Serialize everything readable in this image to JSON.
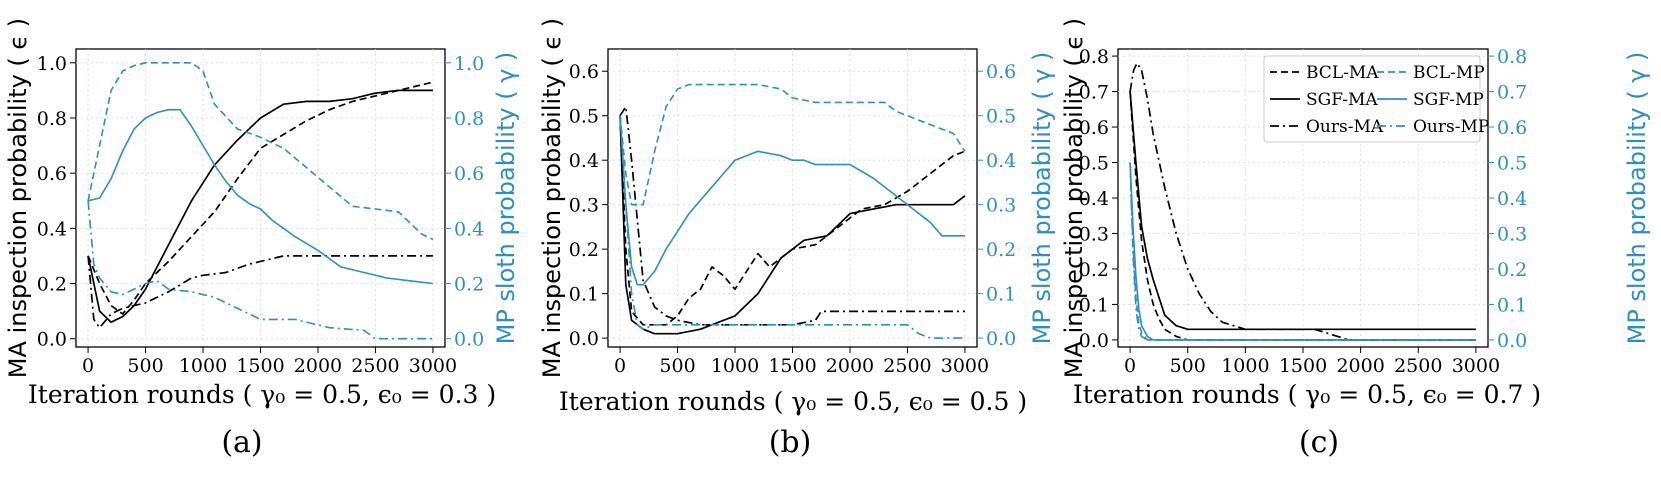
{
  "colors": {
    "ma": "#000000",
    "mp": "#2e8fbf",
    "grid": "#d9d9d9"
  },
  "chart_data": [
    {
      "type": "line",
      "panel": "(a)",
      "xlabel": "Iteration rounds ( γ₀ = 0.5, ϵ₀ = 0.3 )",
      "ylabel_left": "MA inspection probability ( ϵ )",
      "ylabel_right": "MP sloth probability ( γ )",
      "xlim": [
        0,
        3000
      ],
      "ylim_left": [
        -0.03,
        1.05
      ],
      "ylim_right": [
        -0.03,
        1.05
      ],
      "xticks": [
        0,
        500,
        1000,
        1500,
        2000,
        2500,
        3000
      ],
      "yticks_left": [
        0.0,
        0.2,
        0.4,
        0.6,
        0.8,
        1.0
      ],
      "yticks_right": [
        0.0,
        0.2,
        0.4,
        0.6,
        0.8,
        1.0
      ],
      "ytick_labels_left": [
        "0.0",
        "0.2",
        "0.4",
        "0.6",
        "0.8",
        "1.0"
      ],
      "ytick_labels_right": [
        "0.0",
        "0.2",
        "0.4",
        "0.6",
        "0.8",
        "1.0"
      ],
      "series": [
        {
          "name": "BCL-MA",
          "axis": "left",
          "style": "dashed",
          "x": [
            0,
            100,
            200,
            300,
            400,
            500,
            700,
            900,
            1100,
            1300,
            1500,
            1700,
            1900,
            2100,
            2300,
            2500,
            2700,
            2900,
            3000
          ],
          "y": [
            0.3,
            0.2,
            0.12,
            0.09,
            0.14,
            0.2,
            0.28,
            0.37,
            0.46,
            0.58,
            0.69,
            0.74,
            0.79,
            0.83,
            0.86,
            0.88,
            0.9,
            0.92,
            0.93
          ]
        },
        {
          "name": "SGF-MA",
          "axis": "left",
          "style": "solid",
          "x": [
            0,
            100,
            200,
            300,
            400,
            500,
            700,
            900,
            1100,
            1300,
            1500,
            1700,
            1900,
            2100,
            2300,
            2500,
            2700,
            2900,
            3000
          ],
          "y": [
            0.3,
            0.1,
            0.06,
            0.08,
            0.12,
            0.18,
            0.34,
            0.5,
            0.63,
            0.72,
            0.8,
            0.85,
            0.86,
            0.86,
            0.87,
            0.89,
            0.9,
            0.9,
            0.9
          ]
        },
        {
          "name": "Ours-MA",
          "axis": "left",
          "style": "dashdot",
          "x": [
            0,
            50,
            100,
            200,
            300,
            400,
            500,
            700,
            900,
            1000,
            1200,
            1400,
            1600,
            1700,
            2000,
            2500,
            3000
          ],
          "y": [
            0.3,
            0.07,
            0.04,
            0.09,
            0.11,
            0.12,
            0.13,
            0.17,
            0.22,
            0.23,
            0.24,
            0.27,
            0.29,
            0.3,
            0.3,
            0.3,
            0.3
          ]
        },
        {
          "name": "BCL-MP",
          "axis": "right",
          "style": "dashed",
          "x": [
            0,
            100,
            200,
            300,
            400,
            500,
            700,
            900,
            1000,
            1100,
            1300,
            1500,
            1700,
            1900,
            2100,
            2300,
            2500,
            2700,
            2900,
            3000
          ],
          "y": [
            0.5,
            0.7,
            0.9,
            0.97,
            0.99,
            1.0,
            1.0,
            1.0,
            0.97,
            0.85,
            0.76,
            0.73,
            0.69,
            0.62,
            0.55,
            0.48,
            0.47,
            0.46,
            0.38,
            0.36
          ]
        },
        {
          "name": "SGF-MP",
          "axis": "right",
          "style": "solid",
          "x": [
            0,
            100,
            200,
            300,
            400,
            500,
            600,
            700,
            800,
            900,
            1000,
            1100,
            1200,
            1300,
            1400,
            1500,
            1600,
            1800,
            2000,
            2200,
            2400,
            2600,
            2800,
            3000
          ],
          "y": [
            0.5,
            0.51,
            0.58,
            0.68,
            0.76,
            0.8,
            0.82,
            0.83,
            0.83,
            0.77,
            0.7,
            0.63,
            0.57,
            0.52,
            0.49,
            0.47,
            0.43,
            0.37,
            0.32,
            0.26,
            0.24,
            0.22,
            0.21,
            0.2
          ]
        },
        {
          "name": "Ours-MP",
          "axis": "right",
          "style": "dashdot",
          "x": [
            0,
            50,
            100,
            200,
            300,
            400,
            500,
            600,
            700,
            900,
            1100,
            1300,
            1500,
            1800,
            2000,
            2100,
            2400,
            2500,
            3000
          ],
          "y": [
            0.5,
            0.27,
            0.22,
            0.17,
            0.16,
            0.18,
            0.2,
            0.21,
            0.18,
            0.17,
            0.15,
            0.11,
            0.07,
            0.07,
            0.05,
            0.04,
            0.03,
            0.0,
            0.0
          ]
        }
      ]
    },
    {
      "type": "line",
      "panel": "(b)",
      "xlabel": "Iteration rounds ( γ₀ = 0.5, ϵ₀ = 0.5 )",
      "ylabel_left": "MA inspection probability ( ϵ )",
      "ylabel_right": "MP sloth probability ( γ )",
      "xlim": [
        0,
        3000
      ],
      "ylim_left": [
        -0.02,
        0.65
      ],
      "ylim_right": [
        -0.02,
        0.65
      ],
      "xticks": [
        0,
        500,
        1000,
        1500,
        2000,
        2500,
        3000
      ],
      "yticks_left": [
        0.0,
        0.1,
        0.2,
        0.3,
        0.4,
        0.5,
        0.6
      ],
      "yticks_right": [
        0.0,
        0.1,
        0.2,
        0.3,
        0.4,
        0.5,
        0.6
      ],
      "ytick_labels_left": [
        "0.0",
        "0.1",
        "0.2",
        "0.3",
        "0.4",
        "0.5",
        "0.6"
      ],
      "ytick_labels_right": [
        "0.0",
        "0.1",
        "0.2",
        "0.3",
        "0.4",
        "0.5",
        "0.6"
      ],
      "series": [
        {
          "name": "BCL-MA",
          "axis": "left",
          "style": "dashed",
          "x": [
            0,
            50,
            100,
            200,
            300,
            400,
            500,
            600,
            700,
            800,
            900,
            1000,
            1100,
            1200,
            1300,
            1400,
            1500,
            1700,
            1900,
            2100,
            2300,
            2500,
            2700,
            2900,
            3000
          ],
          "y": [
            0.5,
            0.2,
            0.06,
            0.03,
            0.03,
            0.03,
            0.05,
            0.09,
            0.11,
            0.16,
            0.14,
            0.11,
            0.15,
            0.19,
            0.16,
            0.18,
            0.2,
            0.21,
            0.25,
            0.29,
            0.3,
            0.33,
            0.37,
            0.41,
            0.42
          ]
        },
        {
          "name": "SGF-MA",
          "axis": "left",
          "style": "solid",
          "x": [
            0,
            50,
            100,
            200,
            300,
            400,
            500,
            700,
            800,
            900,
            1000,
            1200,
            1400,
            1600,
            1800,
            2000,
            2200,
            2400,
            2600,
            2800,
            2900,
            3000
          ],
          "y": [
            0.5,
            0.12,
            0.04,
            0.02,
            0.01,
            0.01,
            0.01,
            0.02,
            0.03,
            0.04,
            0.05,
            0.1,
            0.18,
            0.22,
            0.23,
            0.28,
            0.29,
            0.3,
            0.3,
            0.3,
            0.3,
            0.32
          ]
        },
        {
          "name": "Ours-MA",
          "axis": "left",
          "style": "dashdot",
          "x": [
            0,
            50,
            100,
            200,
            300,
            400,
            500,
            700,
            900,
            1100,
            1300,
            1500,
            1700,
            1750,
            2000,
            2500,
            3000
          ],
          "y": [
            0.5,
            0.52,
            0.4,
            0.13,
            0.07,
            0.05,
            0.04,
            0.03,
            0.03,
            0.03,
            0.03,
            0.03,
            0.04,
            0.06,
            0.06,
            0.06,
            0.06
          ]
        },
        {
          "name": "BCL-MP",
          "axis": "right",
          "style": "dashed",
          "x": [
            0,
            50,
            100,
            200,
            300,
            400,
            500,
            600,
            700,
            800,
            1000,
            1200,
            1400,
            1500,
            1700,
            2000,
            2300,
            2400,
            2600,
            2800,
            2900,
            3000
          ],
          "y": [
            0.5,
            0.37,
            0.3,
            0.3,
            0.42,
            0.52,
            0.56,
            0.57,
            0.57,
            0.57,
            0.57,
            0.57,
            0.56,
            0.54,
            0.53,
            0.53,
            0.53,
            0.51,
            0.49,
            0.47,
            0.46,
            0.42
          ]
        },
        {
          "name": "SGF-MP",
          "axis": "right",
          "style": "solid",
          "x": [
            0,
            50,
            100,
            150,
            200,
            300,
            400,
            500,
            600,
            700,
            800,
            900,
            1000,
            1100,
            1200,
            1400,
            1500,
            1600,
            1700,
            1800,
            2000,
            2200,
            2400,
            2600,
            2700,
            2800,
            3000
          ],
          "y": [
            0.5,
            0.3,
            0.16,
            0.12,
            0.12,
            0.15,
            0.2,
            0.24,
            0.28,
            0.31,
            0.34,
            0.37,
            0.4,
            0.41,
            0.42,
            0.41,
            0.4,
            0.4,
            0.39,
            0.39,
            0.39,
            0.36,
            0.32,
            0.28,
            0.26,
            0.23,
            0.23
          ]
        },
        {
          "name": "Ours-MP",
          "axis": "right",
          "style": "dashdot",
          "x": [
            0,
            50,
            100,
            150,
            200,
            300,
            500,
            700,
            900,
            1100,
            1300,
            1500,
            1700,
            1900,
            2100,
            2300,
            2500,
            2600,
            2700,
            3000
          ],
          "y": [
            0.5,
            0.3,
            0.1,
            0.03,
            0.02,
            0.03,
            0.03,
            0.03,
            0.03,
            0.03,
            0.03,
            0.03,
            0.03,
            0.03,
            0.03,
            0.03,
            0.03,
            0.01,
            0.0,
            0.0
          ]
        }
      ]
    },
    {
      "type": "line",
      "panel": "(c)",
      "xlabel": "Iteration rounds ( γ₀ = 0.5, ϵ₀ = 0.7 )",
      "ylabel_left": "MA inspection probability ( ϵ )",
      "ylabel_right": "MP sloth probability ( γ )",
      "xlim": [
        0,
        3000
      ],
      "ylim_left": [
        -0.02,
        0.82
      ],
      "ylim_right": [
        -0.02,
        0.82
      ],
      "xticks": [
        0,
        500,
        1000,
        1500,
        2000,
        2500,
        3000
      ],
      "yticks_left": [
        0.0,
        0.1,
        0.2,
        0.3,
        0.4,
        0.5,
        0.6,
        0.7,
        0.8
      ],
      "yticks_right": [
        0.0,
        0.1,
        0.2,
        0.3,
        0.4,
        0.5,
        0.6,
        0.7,
        0.8
      ],
      "ytick_labels_left": [
        "0.0",
        "0.1",
        "0.2",
        "0.3",
        "0.4",
        "0.5",
        "0.6",
        "0.7",
        "0.8"
      ],
      "ytick_labels_right": [
        "0.0",
        "0.1",
        "0.2",
        "0.3",
        "0.4",
        "0.5",
        "0.6",
        "0.7",
        "0.8"
      ],
      "legend": {
        "position": "upper-right",
        "columns": 2,
        "entries": [
          "BCL-MA",
          "BCL-MP",
          "SGF-MA",
          "SGF-MP",
          "Ours-MA",
          "Ours-MP"
        ]
      },
      "series": [
        {
          "name": "BCL-MA",
          "axis": "left",
          "style": "dashed",
          "x": [
            0,
            50,
            100,
            150,
            200,
            250,
            300,
            400,
            500,
            700,
            1000,
            1500,
            2000,
            3000
          ],
          "y": [
            0.7,
            0.46,
            0.28,
            0.17,
            0.1,
            0.06,
            0.03,
            0.01,
            0.0,
            0.0,
            0.0,
            0.0,
            0.0,
            0.0
          ]
        },
        {
          "name": "SGF-MA",
          "axis": "left",
          "style": "solid",
          "x": [
            0,
            50,
            100,
            150,
            200,
            300,
            400,
            500,
            700,
            1000,
            1500,
            2000,
            2500,
            3000
          ],
          "y": [
            0.7,
            0.5,
            0.32,
            0.23,
            0.17,
            0.07,
            0.04,
            0.03,
            0.03,
            0.03,
            0.03,
            0.03,
            0.03,
            0.03
          ]
        },
        {
          "name": "Ours-MA",
          "axis": "left",
          "style": "dashdot",
          "x": [
            0,
            30,
            60,
            100,
            150,
            200,
            300,
            400,
            500,
            600,
            700,
            800,
            900,
            1000,
            1200,
            1400,
            1600,
            1700,
            1800,
            1900,
            2000,
            3000
          ],
          "y": [
            0.7,
            0.76,
            0.78,
            0.76,
            0.68,
            0.58,
            0.43,
            0.3,
            0.2,
            0.13,
            0.08,
            0.05,
            0.04,
            0.03,
            0.03,
            0.03,
            0.03,
            0.02,
            0.01,
            0.0,
            0.0,
            0.0
          ]
        },
        {
          "name": "BCL-MP",
          "axis": "right",
          "style": "dashed",
          "x": [
            0,
            25,
            50,
            75,
            100,
            150,
            200,
            3000
          ],
          "y": [
            0.5,
            0.27,
            0.12,
            0.05,
            0.02,
            0.0,
            0.0,
            0.0
          ]
        },
        {
          "name": "SGF-MP",
          "axis": "right",
          "style": "solid",
          "x": [
            0,
            25,
            50,
            75,
            100,
            150,
            200,
            3000
          ],
          "y": [
            0.5,
            0.32,
            0.18,
            0.09,
            0.04,
            0.01,
            0.0,
            0.0
          ]
        },
        {
          "name": "Ours-MP",
          "axis": "right",
          "style": "dashdot",
          "x": [
            0,
            25,
            50,
            75,
            100,
            150,
            200,
            3000
          ],
          "y": [
            0.5,
            0.24,
            0.09,
            0.03,
            0.01,
            0.0,
            0.0,
            0.0
          ]
        }
      ]
    }
  ]
}
